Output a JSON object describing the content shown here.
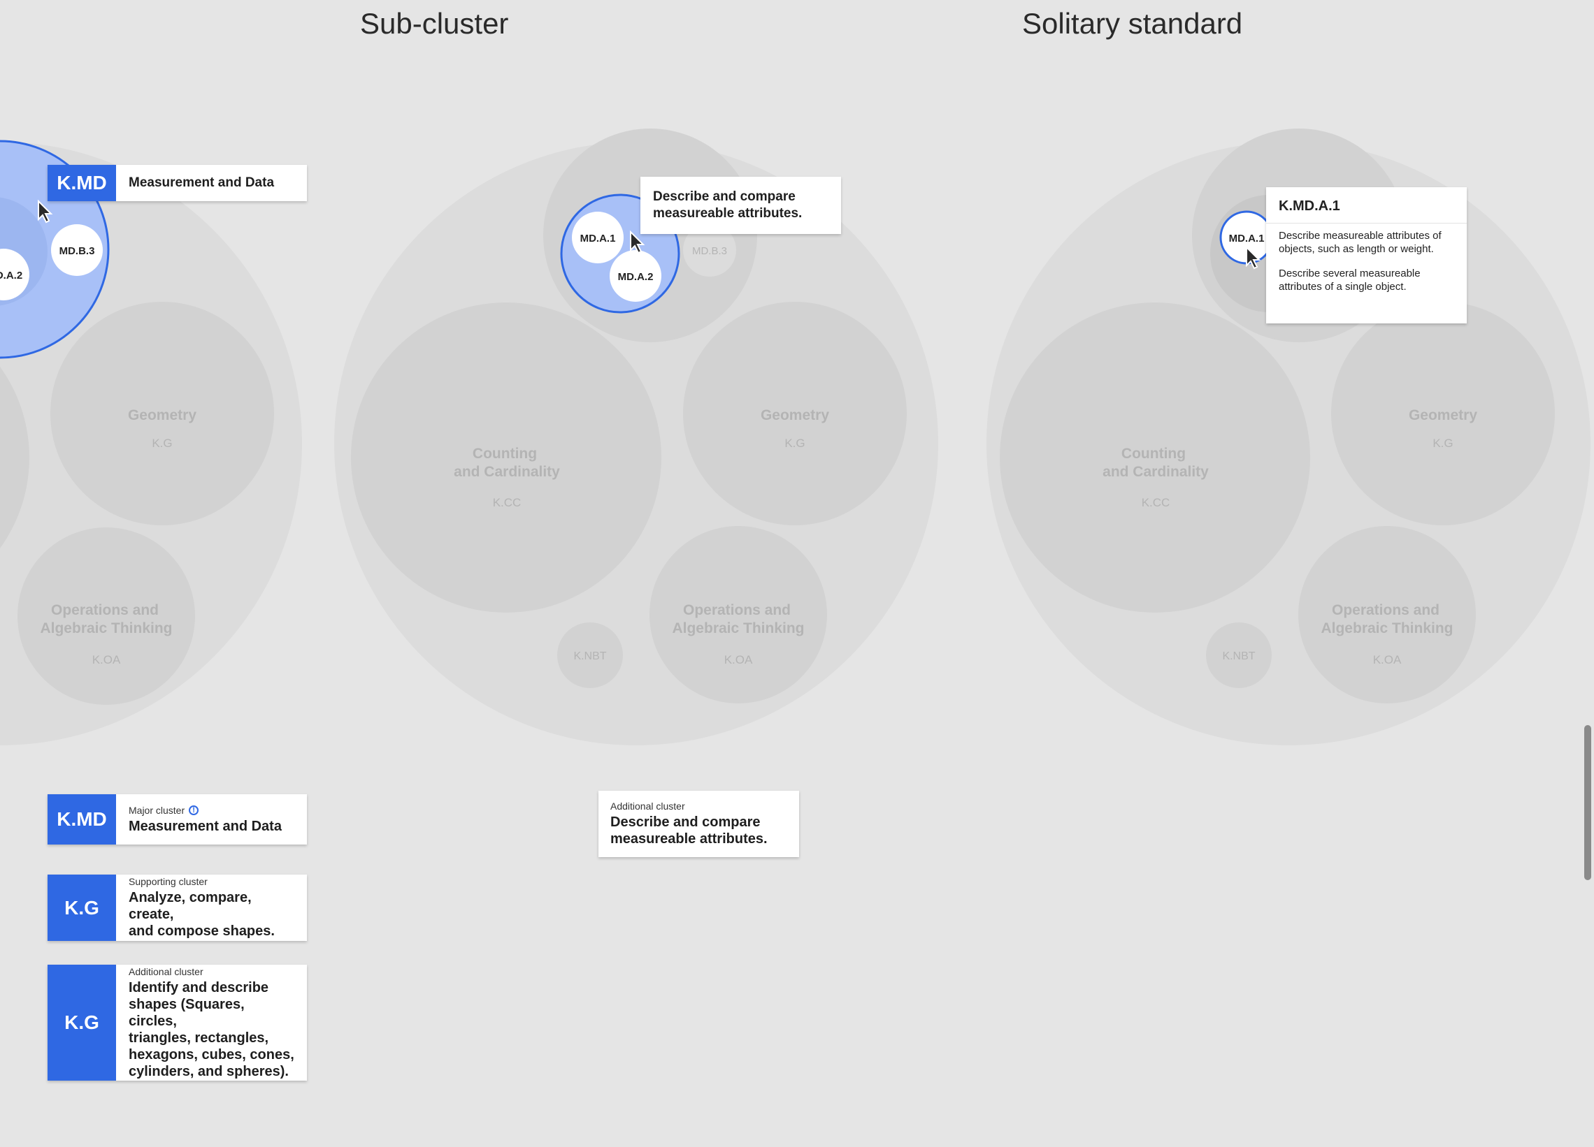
{
  "titles": {
    "sub_cluster": "Sub-cluster",
    "solitary_standard": "Solitary standard"
  },
  "colors": {
    "accent": "#2f68e3",
    "highlight_fill": "#a8c0f7",
    "background": "#e5e5e5"
  },
  "panel1": {
    "geometry": {
      "name": "Geometry",
      "code": "K.G"
    },
    "oa": {
      "name1": "Operations and",
      "name2": "Algebraic Thinking",
      "code": "K.OA"
    },
    "md_b3": "MD.B.3",
    "md_a2": "D.A.2",
    "tooltip": {
      "tag": "K.MD",
      "label": "Measurement and Data"
    }
  },
  "panel2": {
    "cc": {
      "name1": "Counting",
      "name2": "and Cardinality",
      "code": "K.CC"
    },
    "geometry": {
      "name": "Geometry",
      "code": "K.G"
    },
    "oa": {
      "name1": "Operations and",
      "name2": "Algebraic Thinking",
      "code": "K.OA"
    },
    "nbt": "K.NBT",
    "md_a1": "MD.A.1",
    "md_a2": "MD.A.2",
    "md_b3": "MD.B.3",
    "tooltip": {
      "line1": "Describe and compare",
      "line2": "measureable attributes."
    }
  },
  "panel3": {
    "cc": {
      "name1": "Counting",
      "name2": "and Cardinality",
      "code": "K.CC"
    },
    "geometry": {
      "name": "Geometry",
      "code": "K.G"
    },
    "oa": {
      "name1": "Operations and",
      "name2": "Algebraic Thinking",
      "code": "K.OA"
    },
    "nbt": "K.NBT",
    "md_a1": "MD.A.1",
    "card": {
      "title": "K.MD.A.1",
      "p1": "Describe measureable attributes of objects, such as length or weight.",
      "p2": "Describe several measureable attributes of a single object."
    }
  },
  "legend": {
    "major": {
      "tag": "K.MD",
      "type": "Major cluster",
      "name": "Measurement and Data"
    },
    "supporting": {
      "tag": "K.G",
      "type": "Supporting cluster",
      "name1": "Analyze, compare, create,",
      "name2": "and compose shapes."
    },
    "additional_kg": {
      "tag": "K.G",
      "type": "Additional cluster",
      "lines": [
        "Identify and describe",
        "shapes (Squares, circles,",
        "triangles, rectangles,",
        "hexagons, cubes, cones,",
        "cylinders, and spheres)."
      ]
    },
    "additional_md": {
      "type": "Additional cluster",
      "name1": "Describe and compare",
      "name2": "measureable attributes."
    }
  }
}
